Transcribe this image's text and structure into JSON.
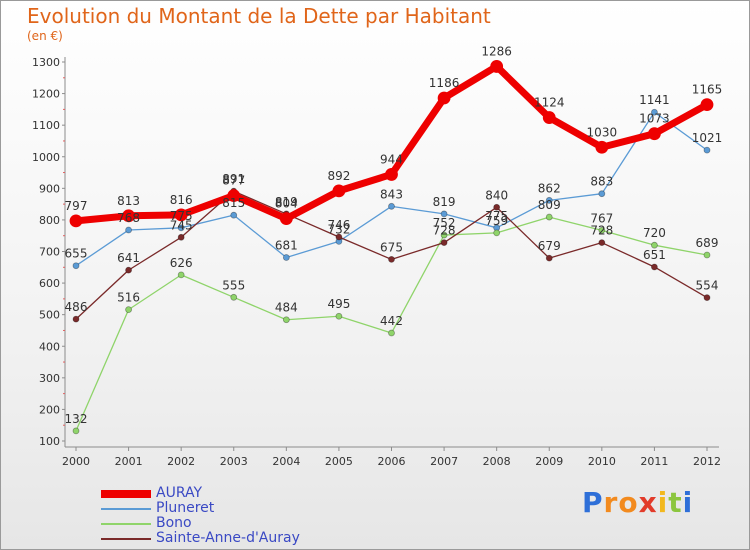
{
  "title": "Evolution du Montant de la Dette par Habitant",
  "unit": "(en €)",
  "logo": {
    "letters": [
      "P",
      "r",
      "o",
      "x",
      "i",
      "t",
      "i"
    ],
    "colors": [
      "#2e6fd8",
      "#f28a1e",
      "#f28a1e",
      "#e23b2a",
      "#f2b81e",
      "#8cc63f",
      "#2e6fd8"
    ]
  },
  "chart_data": {
    "type": "line",
    "x": [
      "2000",
      "2001",
      "2002",
      "2003",
      "2004",
      "2005",
      "2006",
      "2007",
      "2008",
      "2009",
      "2010",
      "2011",
      "2012"
    ],
    "ylim": [
      100,
      1300
    ],
    "yticks": [
      100,
      200,
      300,
      400,
      500,
      600,
      700,
      800,
      900,
      1000,
      1100,
      1200,
      1300
    ],
    "grid": false,
    "legend": "bottom-left",
    "series": [
      {
        "name": "Pluneret",
        "color": "#5b9bd5",
        "values": [
          655,
          768,
          775,
          815,
          681,
          732,
          843,
          819,
          775,
          862,
          883,
          1141,
          1021
        ],
        "labels": [
          "655",
          "768",
          "775",
          "815",
          "681",
          "732",
          "843",
          "819",
          "775",
          "862",
          "883",
          "1141",
          "1021"
        ]
      },
      {
        "name": "Bono",
        "color": "#8fd46a",
        "values": [
          132,
          516,
          626,
          555,
          484,
          495,
          442,
          752,
          759,
          809,
          767,
          720,
          689
        ],
        "labels": [
          "132",
          "516",
          "626",
          "555",
          "484",
          "495",
          "442",
          "752",
          "759",
          "809",
          "767",
          "720",
          "689"
        ]
      },
      {
        "name": "Sainte-Anne-d'Auray",
        "color": "#7a2a2a",
        "values": [
          486,
          641,
          745,
          891,
          819,
          746,
          675,
          728,
          840,
          679,
          728,
          651,
          554
        ],
        "labels": [
          "486",
          "641",
          "745",
          "891",
          "819",
          "746",
          "675",
          "728",
          "840",
          "679",
          "728",
          "651",
          "554"
        ]
      },
      {
        "name": "AURAY",
        "color": "#ee0000",
        "values": [
          797,
          813,
          816,
          877,
          804,
          892,
          944,
          1186,
          1286,
          1124,
          1030,
          1073,
          1165
        ],
        "labels": [
          "797",
          "813",
          "816",
          "877",
          "804",
          "892",
          "944",
          "1186",
          "1286",
          "1124",
          "1030",
          "1073",
          "1165"
        ]
      }
    ]
  }
}
